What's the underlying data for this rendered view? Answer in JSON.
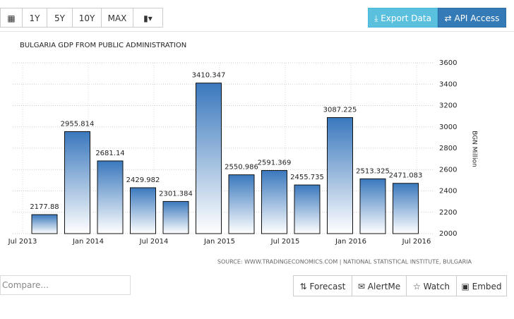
{
  "toolbar": {
    "ranges": [
      "1Y",
      "5Y",
      "10Y",
      "MAX"
    ],
    "export": "Export Data",
    "api": "API Access"
  },
  "chart_data": {
    "type": "bar",
    "title": "BULGARIA GDP FROM PUBLIC ADMINISTRATION",
    "values": [
      2177.88,
      2955.814,
      2681.14,
      2429.982,
      2301.384,
      3410.347,
      2550.986,
      2591.369,
      2455.735,
      3087.225,
      2513.325,
      2471.083
    ],
    "x_tick_labels": [
      "Jul 2013",
      "Jan 2014",
      "Jul 2014",
      "Jan 2015",
      "Jul 2015",
      "Jan 2016",
      "Jul 2016"
    ],
    "ylim": [
      2000,
      3600
    ],
    "yticks": [
      2000,
      2200,
      2400,
      2600,
      2800,
      3000,
      3200,
      3400,
      3600
    ],
    "y_label": "BGN Million",
    "color": "#3a78bd",
    "grid": true,
    "source": "SOURCE: WWW.TRADINGECONOMICS.COM | NATIONAL STATISTICAL INSTITUTE, BULGARIA"
  },
  "footer": {
    "compare": "Compare...",
    "buttons": [
      "Forecast",
      "AlertMe",
      "Watch",
      "Embed"
    ]
  }
}
